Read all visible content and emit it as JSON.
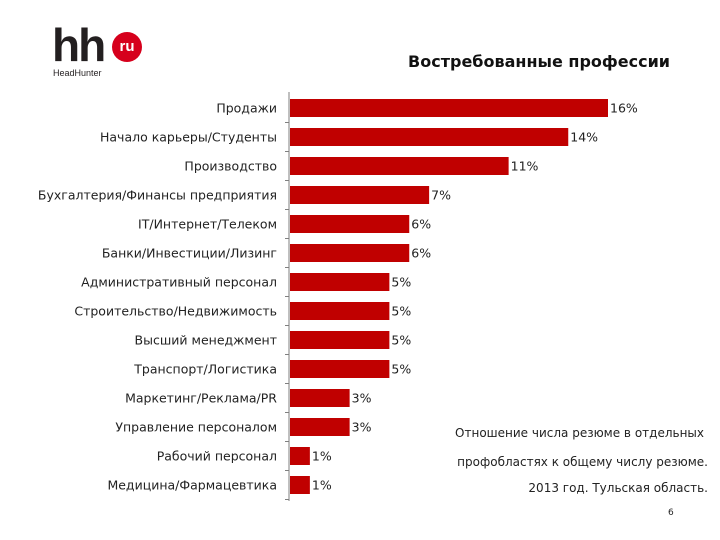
{
  "logo": {
    "main": "hh",
    "badge": "ru",
    "sub": "HeadHunter"
  },
  "title": "Востребованные профессии",
  "note": [
    "Отношение числа резюме в отдельных",
    "профобластях к общему числу резюме.",
    "2013 год. Тульская область."
  ],
  "page_number": "6",
  "colors": {
    "bar": "#c00000",
    "axis": "#7f7f7f"
  },
  "chart_data": {
    "type": "bar",
    "orientation": "horizontal",
    "title": "Востребованные профессии",
    "categories": [
      "Продажи",
      "Начало карьеры/Студенты",
      "Производство",
      "Бухгалтерия/Финансы предприятия",
      "IT/Интернет/Телеком",
      "Банки/Инвестиции/Лизинг",
      "Административный персонал",
      "Строительство/Недвижимость",
      "Высший менеджмент",
      "Транспорт/Логистика",
      "Маркетинг/Реклама/PR",
      "Управление персоналом",
      "Рабочий персонал",
      "Медицина/Фармацевтика"
    ],
    "values": [
      16,
      14,
      11,
      7,
      6,
      6,
      5,
      5,
      5,
      5,
      3,
      3,
      1,
      1
    ],
    "labels": [
      "16%",
      "14%",
      "11%",
      "7%",
      "6%",
      "6%",
      "5%",
      "5%",
      "5%",
      "5%",
      "3%",
      "3%",
      "1%",
      "1%"
    ],
    "unit": "%",
    "xlim": [
      0,
      16
    ],
    "grid": false,
    "legend": false
  }
}
